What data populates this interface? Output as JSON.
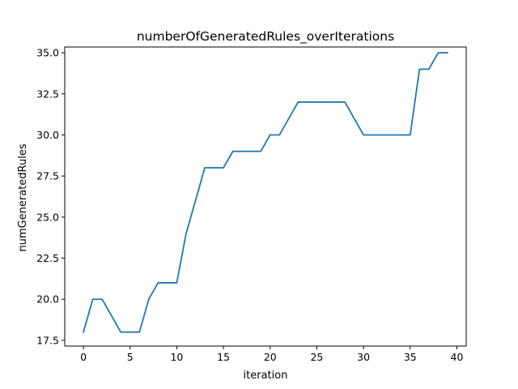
{
  "chart_data": {
    "type": "line",
    "title": "numberOfGeneratedRules_overIterations",
    "xlabel": "iteration",
    "ylabel": "numGeneratedRules",
    "xlim": [
      -2,
      41
    ],
    "ylim": [
      17.15,
      35.35
    ],
    "xticks": [
      0,
      5,
      10,
      15,
      20,
      25,
      30,
      35,
      40
    ],
    "yticks": [
      17.5,
      20.0,
      22.5,
      25.0,
      27.5,
      30.0,
      32.5,
      35.0
    ],
    "ytick_labels": [
      "17.5",
      "20.0",
      "22.5",
      "25.0",
      "27.5",
      "30.0",
      "32.5",
      "35.0"
    ],
    "grid": false,
    "series": [
      {
        "color": "#1f77b4",
        "x": [
          0,
          1,
          2,
          3,
          4,
          5,
          6,
          7,
          8,
          9,
          10,
          11,
          12,
          13,
          14,
          15,
          16,
          17,
          18,
          19,
          20,
          21,
          22,
          23,
          24,
          25,
          26,
          27,
          28,
          29,
          30,
          31,
          32,
          33,
          34,
          35,
          36,
          37,
          38,
          39
        ],
        "values": [
          18,
          20,
          20,
          19,
          18,
          18,
          18,
          20,
          21,
          21,
          21,
          24,
          26,
          28,
          28,
          28,
          29,
          29,
          29,
          29,
          30,
          30,
          31,
          32,
          32,
          32,
          32,
          32,
          32,
          31,
          30,
          30,
          30,
          30,
          30,
          30,
          34,
          34,
          35,
          35
        ]
      }
    ]
  }
}
